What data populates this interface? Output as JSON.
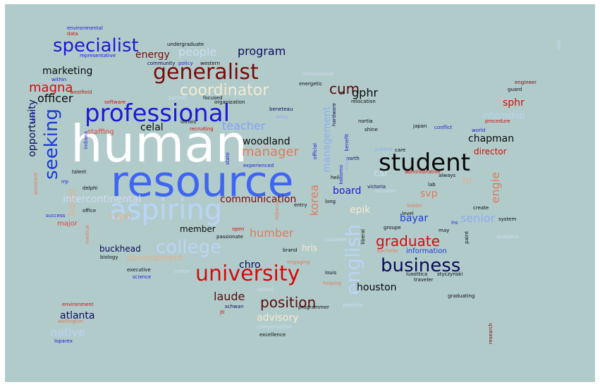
{
  "colors": {
    "background": "#b1cbcb"
  },
  "words": [
    {
      "t": "human",
      "c": "#ffffff"
    },
    {
      "t": "resource",
      "c": "#3e66f2"
    },
    {
      "t": "aspiring",
      "c": "#b9d5f5"
    },
    {
      "t": "professional",
      "c": "#1a1ad6"
    },
    {
      "t": "generalist",
      "c": "#7a0a0a"
    },
    {
      "t": "student",
      "c": "#0a0a0a"
    },
    {
      "t": "university",
      "c": "#d60a0a"
    },
    {
      "t": "specialist",
      "c": "#1a1ad6"
    },
    {
      "t": "seeking",
      "c": "#1a3ad6"
    },
    {
      "t": "coordinator",
      "c": "#f5ead0"
    },
    {
      "t": "college",
      "c": "#b9d5f5"
    },
    {
      "t": "business",
      "c": "#0a0a5a"
    },
    {
      "t": "english",
      "c": "#b9d5f5"
    },
    {
      "t": "position",
      "c": "#5a0a0a"
    },
    {
      "t": "graduate",
      "c": "#d60a0a"
    },
    {
      "t": "magna",
      "c": "#d60a0a"
    },
    {
      "t": "cum",
      "c": "#5a0a0a"
    },
    {
      "t": "people",
      "c": "#d0dcf5"
    },
    {
      "t": "energy",
      "c": "#7a0a0a"
    },
    {
      "t": "program",
      "c": "#0a0a5a"
    },
    {
      "t": "marketing",
      "c": "#0a0a0a"
    },
    {
      "t": "officer",
      "c": "#0a0a0a"
    },
    {
      "t": "gphr",
      "c": "#0a0a0a"
    },
    {
      "t": "celal",
      "c": "#0a0a0a"
    },
    {
      "t": "teacher",
      "c": "#7fa2f2"
    },
    {
      "t": "woodland",
      "c": "#0a0a0a"
    },
    {
      "t": "manager",
      "c": "#e07a5a"
    },
    {
      "t": "staffing",
      "c": "#e04040"
    },
    {
      "t": "chapman",
      "c": "#0a0a0a"
    },
    {
      "t": "director",
      "c": "#d60a0a"
    },
    {
      "t": "sphr",
      "c": "#d60a0a"
    },
    {
      "t": "internship",
      "c": "#b9d5f5"
    },
    {
      "t": "hr",
      "c": "#e0b08a"
    },
    {
      "t": "engie",
      "c": "#e07a5a"
    },
    {
      "t": "management",
      "c": "#8aaef0"
    },
    {
      "t": "korea",
      "c": "#e07a5a"
    },
    {
      "t": "svp",
      "c": "#e07a5a"
    },
    {
      "t": "senior",
      "c": "#8aaef0"
    },
    {
      "t": "bayar",
      "c": "#1a3ad6"
    },
    {
      "t": "epik",
      "c": "#f5ead0"
    },
    {
      "t": "board",
      "c": "#1a1ad6"
    },
    {
      "t": "csr",
      "c": "#d0dcf5"
    },
    {
      "t": "opportunity",
      "c": "#0a0a5a"
    },
    {
      "t": "bauer",
      "c": "#e0b08a"
    },
    {
      "t": "intercontinental",
      "c": "#d0dcf5"
    },
    {
      "t": "communication",
      "c": "#7a0a0a"
    },
    {
      "t": "humber",
      "c": "#e07a5a"
    },
    {
      "t": "ryan",
      "c": "#e0b08a"
    },
    {
      "t": "member",
      "c": "#0a0a0a"
    },
    {
      "t": "development",
      "c": "#e0b08a"
    },
    {
      "t": "buckhead",
      "c": "#0a0a5a"
    },
    {
      "t": "chro",
      "c": "#0a0a5a"
    },
    {
      "t": "hris",
      "c": "#f5ead0"
    },
    {
      "t": "information",
      "c": "#1a3ad6"
    },
    {
      "t": "houston",
      "c": "#0a0a0a"
    },
    {
      "t": "laude",
      "c": "#5a0a0a"
    },
    {
      "t": "advisory",
      "c": "#f5ead0"
    },
    {
      "t": "atlanta",
      "c": "#0a0a5a"
    },
    {
      "t": "native",
      "c": "#b9d5f5"
    },
    {
      "t": "major",
      "c": "#e04040"
    },
    {
      "t": "talent",
      "c": "#0a0a0a"
    },
    {
      "t": "delphi",
      "c": "#0a0a0a"
    },
    {
      "t": "office",
      "c": "#0a0a0a"
    },
    {
      "t": "success",
      "c": "#1a1ad6"
    },
    {
      "t": "biology",
      "c": "#0a0a0a"
    },
    {
      "t": "executive",
      "c": "#0a0a0a"
    },
    {
      "t": "science",
      "c": "#1a1ad6"
    },
    {
      "t": "center",
      "c": "#d0dcf5"
    },
    {
      "t": "environmental",
      "c": "#1a1ad6"
    },
    {
      "t": "data",
      "c": "#d60a0a"
    },
    {
      "t": "undergraduate",
      "c": "#0a0a0a"
    },
    {
      "t": "representative",
      "c": "#1a1ad6"
    },
    {
      "t": "community",
      "c": "#0a0a5a"
    },
    {
      "t": "policy",
      "c": "#1a1ad6"
    },
    {
      "t": "western",
      "c": "#0a0a0a"
    },
    {
      "t": "within",
      "c": "#1a1ad6"
    },
    {
      "t": "westfield",
      "c": "#d60a0a"
    },
    {
      "t": "software",
      "c": "#d60a0a"
    },
    {
      "t": "partner",
      "c": "#d0dcf5"
    },
    {
      "t": "focused",
      "c": "#0a0a0a"
    },
    {
      "t": "organization",
      "c": "#0a0a0a"
    },
    {
      "t": "illinois",
      "c": "#0a0a0a"
    },
    {
      "t": "recruiting",
      "c": "#d60a0a"
    },
    {
      "t": "beneteau",
      "c": "#0a0a5a"
    },
    {
      "t": "army",
      "c": "#8aaef0"
    },
    {
      "t": "relocation",
      "c": "#0a0a0a"
    },
    {
      "t": "international",
      "c": "#d0dcf5"
    },
    {
      "t": "energetic",
      "c": "#0a0a0a"
    },
    {
      "t": "st",
      "c": "#0a0a0a"
    },
    {
      "t": "nortia",
      "c": "#0a0a0a"
    },
    {
      "t": "shine",
      "c": "#0a0a0a"
    },
    {
      "t": "japan",
      "c": "#0a0a0a"
    },
    {
      "t": "conflict",
      "c": "#1a1ad6"
    },
    {
      "t": "world",
      "c": "#1a1ad6"
    },
    {
      "t": "procedure",
      "c": "#d60a0a"
    },
    {
      "t": "engineer",
      "c": "#7a0a0a"
    },
    {
      "t": "guard",
      "c": "#0a0a0a"
    },
    {
      "t": "hardware",
      "c": "#0a0a5a"
    },
    {
      "t": "official",
      "c": "#1a1ad6"
    },
    {
      "t": "north",
      "c": "#0a0a5a"
    },
    {
      "t": "heil",
      "c": "#0a0a0a"
    },
    {
      "t": "kokomo",
      "c": "#1a1ad6"
    },
    {
      "t": "benefit",
      "c": "#1a1ad6"
    },
    {
      "t": "travel",
      "c": "#8aaef0"
    },
    {
      "t": "victoria",
      "c": "#0a0a5a"
    },
    {
      "t": "patient",
      "c": "#8aaef0"
    },
    {
      "t": "care",
      "c": "#0a0a0a"
    },
    {
      "t": "administrative",
      "c": "#d60a0a"
    },
    {
      "t": "always",
      "c": "#0a0a0a"
    },
    {
      "t": "lab",
      "c": "#0a0a0a"
    },
    {
      "t": "recruiter",
      "c": "#d0dcf5"
    },
    {
      "t": "long",
      "c": "#0a0a0a"
    },
    {
      "t": "leader",
      "c": "#e07a5a"
    },
    {
      "t": "level",
      "c": "#0a0a0a"
    },
    {
      "t": "create",
      "c": "#0a0a0a"
    },
    {
      "t": "system",
      "c": "#0a0a0a"
    },
    {
      "t": "analytics",
      "c": "#d0dcf5"
    },
    {
      "t": "groupe",
      "c": "#0a0a0a"
    },
    {
      "t": "may",
      "c": "#0a0a0a"
    },
    {
      "t": "inc",
      "c": "#1a1ad6"
    },
    {
      "t": "paint",
      "c": "#0a0a0a"
    },
    {
      "t": "open",
      "c": "#d60a0a"
    },
    {
      "t": "passionate",
      "c": "#0a0a0a"
    },
    {
      "t": "entry",
      "c": "#0a0a0a"
    },
    {
      "t": "tobacco",
      "c": "#e07a5a"
    },
    {
      "t": "brand",
      "c": "#0a0a0a"
    },
    {
      "t": "engaging",
      "c": "#e07a5a"
    },
    {
      "t": "customer",
      "c": "#d0dcf5"
    },
    {
      "t": "liberal",
      "c": "#0a0a0a"
    },
    {
      "t": "bachelor",
      "c": "#e07a5a"
    },
    {
      "t": "luxottica",
      "c": "#0a0a0a"
    },
    {
      "t": "styczynski",
      "c": "#0a0a0a"
    },
    {
      "t": "traveler",
      "c": "#0a0a0a"
    },
    {
      "t": "louis",
      "c": "#0a0a0a"
    },
    {
      "t": "helping",
      "c": "#e07a5a"
    },
    {
      "t": "retired",
      "c": "#d0dcf5"
    },
    {
      "t": "schwan",
      "c": "#0a0a5a"
    },
    {
      "t": "jti",
      "c": "#d60a0a"
    },
    {
      "t": "programmer",
      "c": "#0a0a0a"
    },
    {
      "t": "portfolio",
      "c": "#d0dcf5"
    },
    {
      "t": "compensation",
      "c": "#d0dcf5"
    },
    {
      "t": "excellence",
      "c": "#0a0a0a"
    },
    {
      "t": "graduating",
      "c": "#0a0a0a"
    },
    {
      "t": "research",
      "c": "#7a0a0a"
    },
    {
      "t": "environment",
      "c": "#d60a0a"
    },
    {
      "t": "wellington",
      "c": "#e07a5a"
    },
    {
      "t": "loparex",
      "c": "#1a1ad6"
    },
    {
      "t": "medical",
      "c": "#e07a5a"
    },
    {
      "t": "assistant",
      "c": "#e07a5a"
    },
    {
      "t": "team",
      "c": "#1a1ad6"
    },
    {
      "t": "indiana",
      "c": "#1a1ad6"
    },
    {
      "t": "state",
      "c": "#1a1ad6"
    },
    {
      "t": "rrp",
      "c": "#1a1ad6"
    },
    {
      "t": "experienced",
      "c": "#1a1ad6"
    },
    {
      "t": "vice",
      "c": "#d0dcf5"
    }
  ]
}
